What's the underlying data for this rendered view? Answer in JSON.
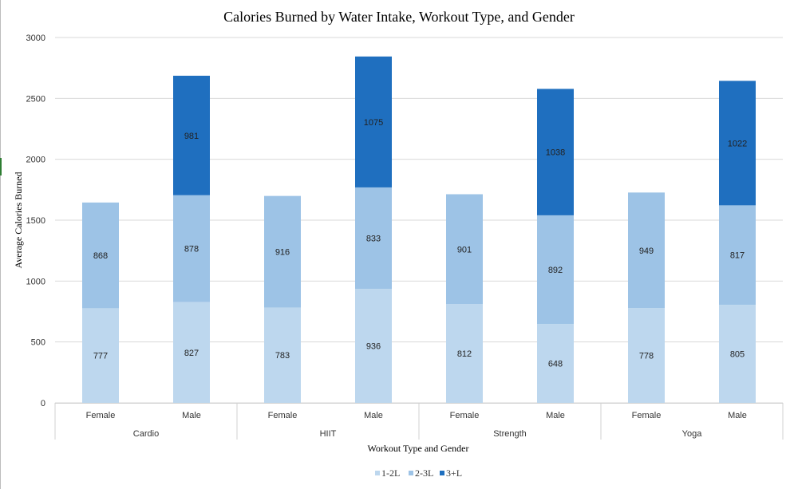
{
  "chart_data": {
    "type": "bar",
    "stacked": true,
    "title": "Calories Burned by Water Intake, Workout Type, and Gender",
    "xlabel": "Workout Type and Gender",
    "ylabel": "Average Calories Burned",
    "ylim": [
      0,
      3000
    ],
    "yticks": [
      0,
      500,
      1000,
      1500,
      2000,
      2500,
      3000
    ],
    "grid": true,
    "legend_position": "bottom",
    "groups": [
      "Cardio",
      "HIIT",
      "Strength",
      "Yoga"
    ],
    "categories": [
      "Female",
      "Male",
      "Female",
      "Male",
      "Female",
      "Male",
      "Female",
      "Male"
    ],
    "series": [
      {
        "name": "1-2L",
        "color": "#bdd7ee",
        "values": [
          777,
          827,
          783,
          936,
          812,
          648,
          778,
          805
        ]
      },
      {
        "name": "2-3L",
        "color": "#9dc3e6",
        "values": [
          868,
          878,
          916,
          833,
          901,
          892,
          949,
          817
        ]
      },
      {
        "name": "3+L",
        "color": "#1f6fbf",
        "values": [
          null,
          981,
          null,
          1075,
          null,
          1038,
          null,
          1022
        ]
      }
    ]
  }
}
